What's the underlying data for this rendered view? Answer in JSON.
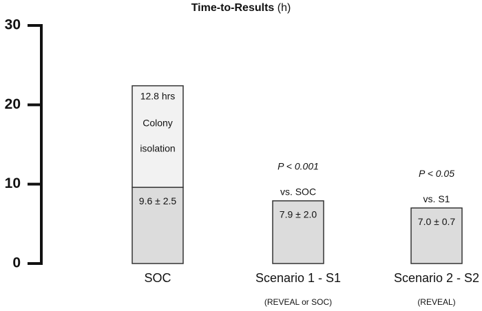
{
  "chart_data": {
    "type": "stacked-bar",
    "title": "Time-to-Results",
    "title_unit": "(h)",
    "categories": [
      "SOC",
      "Scenario 1 - S1",
      "Scenario 2 - S2"
    ],
    "category_notes": [
      null,
      "(REVEAL or SOC)",
      "(REVEAL)"
    ],
    "series": [
      {
        "color": "#dcdcdc",
        "values": [
          9.6,
          7.9,
          7.0
        ],
        "value_labels": [
          "9.6 ± 2.5",
          "7.9 ± 2.0",
          "7.0 ± 0.7"
        ]
      },
      {
        "color": "#f2f2f2",
        "values": [
          12.8,
          null,
          null
        ],
        "value_labels": [
          "12.8 hrs",
          null,
          null
        ],
        "segment_labels": [
          "Colony isolation",
          null,
          null
        ]
      }
    ],
    "comparisons": [
      null,
      {
        "p": "P < 0.001",
        "vs": "vs. SOC"
      },
      {
        "p": "P < 0.05",
        "vs": "vs. S1"
      }
    ],
    "ylim": [
      0,
      30
    ],
    "yticks": [
      0,
      10,
      20,
      30
    ]
  }
}
